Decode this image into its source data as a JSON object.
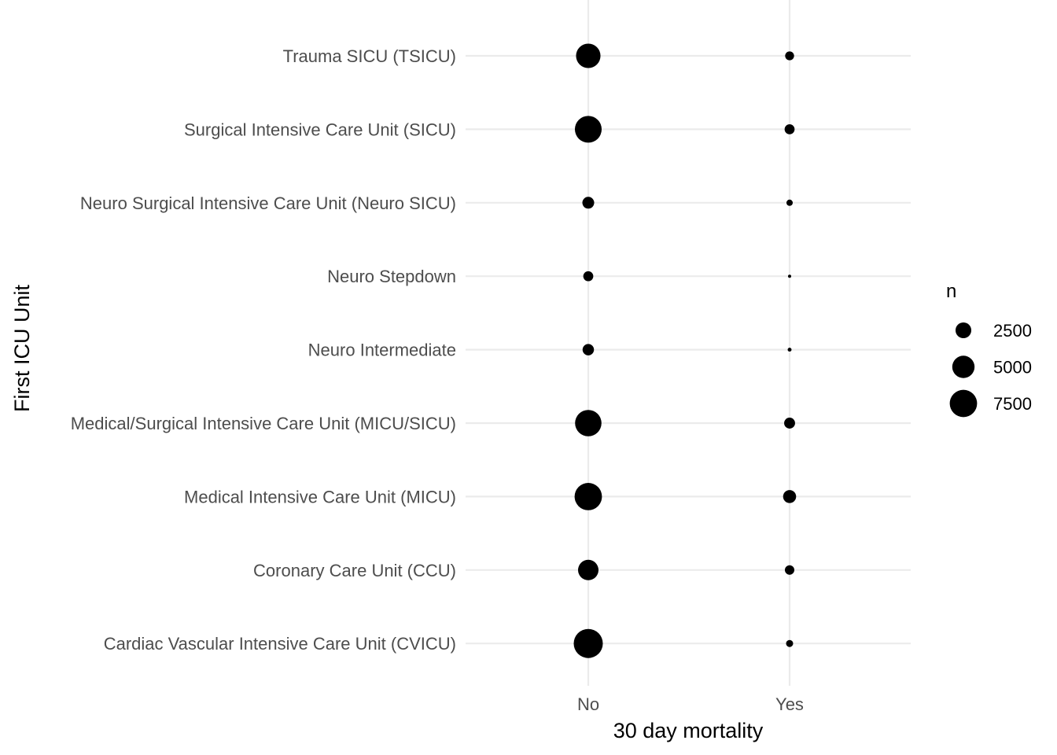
{
  "chart_data": {
    "type": "scatter",
    "title": "",
    "xlabel": "30 day mortality",
    "ylabel": "First ICU Unit",
    "x_categories": [
      "No",
      "Yes"
    ],
    "y_categories": [
      "Cardiac Vascular Intensive Care Unit (CVICU)",
      "Coronary Care Unit (CCU)",
      "Medical Intensive Care Unit (MICU)",
      "Medical/Surgical Intensive Care Unit (MICU/SICU)",
      "Neuro Intermediate",
      "Neuro Stepdown",
      "Neuro Surgical Intensive Care Unit (Neuro SICU)",
      "Surgical Intensive Care Unit (SICU)",
      "Trauma SICU (TSICU)"
    ],
    "size_variable": "n",
    "points": [
      {
        "x": "No",
        "y": "Cardiac Vascular Intensive Care Unit (CVICU)",
        "n": 8500
      },
      {
        "x": "Yes",
        "y": "Cardiac Vascular Intensive Care Unit (CVICU)",
        "n": 500
      },
      {
        "x": "No",
        "y": "Coronary Care Unit (CCU)",
        "n": 4200
      },
      {
        "x": "Yes",
        "y": "Coronary Care Unit (CCU)",
        "n": 900
      },
      {
        "x": "No",
        "y": "Medical Intensive Care Unit (MICU)",
        "n": 7500
      },
      {
        "x": "Yes",
        "y": "Medical Intensive Care Unit (MICU)",
        "n": 1700
      },
      {
        "x": "No",
        "y": "Medical/Surgical Intensive Care Unit (MICU/SICU)",
        "n": 7000
      },
      {
        "x": "Yes",
        "y": "Medical/Surgical Intensive Care Unit (MICU/SICU)",
        "n": 1200
      },
      {
        "x": "No",
        "y": "Neuro Intermediate",
        "n": 1300
      },
      {
        "x": "Yes",
        "y": "Neuro Intermediate",
        "n": 150
      },
      {
        "x": "No",
        "y": "Neuro Stepdown",
        "n": 1000
      },
      {
        "x": "Yes",
        "y": "Neuro Stepdown",
        "n": 100
      },
      {
        "x": "No",
        "y": "Neuro Surgical Intensive Care Unit (Neuro SICU)",
        "n": 1400
      },
      {
        "x": "Yes",
        "y": "Neuro Surgical Intensive Care Unit (Neuro SICU)",
        "n": 400
      },
      {
        "x": "No",
        "y": "Surgical Intensive Care Unit (SICU)",
        "n": 7200
      },
      {
        "x": "Yes",
        "y": "Surgical Intensive Care Unit (SICU)",
        "n": 1000
      },
      {
        "x": "No",
        "y": "Trauma SICU (TSICU)",
        "n": 6000
      },
      {
        "x": "Yes",
        "y": "Trauma SICU (TSICU)",
        "n": 800
      }
    ],
    "legend": {
      "title": "n",
      "placement": "right",
      "entries": [
        {
          "label": "2500",
          "n": 2500
        },
        {
          "label": "5000",
          "n": 5000
        },
        {
          "label": "7500",
          "n": 7500
        }
      ]
    },
    "grid": true
  }
}
